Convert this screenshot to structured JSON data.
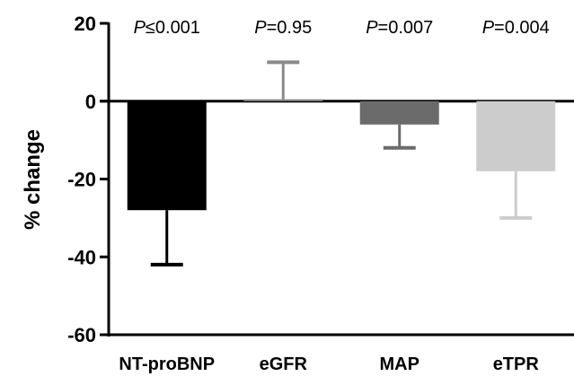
{
  "chart_data": {
    "type": "bar",
    "ylabel": "% change",
    "xlabel": "",
    "title": "",
    "ylim": [
      -60,
      20
    ],
    "yticks": [
      20,
      0,
      -20,
      -40,
      -60
    ],
    "yticks_text": [
      "20",
      "0",
      "-20",
      "-40",
      "-60"
    ],
    "categories": [
      "NT-proBNP",
      "eGFR",
      "MAP",
      "eTPR"
    ],
    "values": [
      -28,
      0.5,
      -6,
      -18
    ],
    "error_ends": [
      -42,
      10,
      -12,
      -30
    ],
    "colors": [
      "#000000",
      "#8a8a8a",
      "#6b6b6b",
      "#cccccc"
    ],
    "p_values": [
      {
        "prefix": "P",
        "text": "≤0.001"
      },
      {
        "prefix": "P",
        "text": "=0.95"
      },
      {
        "prefix": "P",
        "text": "=0.007"
      },
      {
        "prefix": "P",
        "text": "=0.004"
      }
    ],
    "grid": false,
    "zero_line": true
  }
}
